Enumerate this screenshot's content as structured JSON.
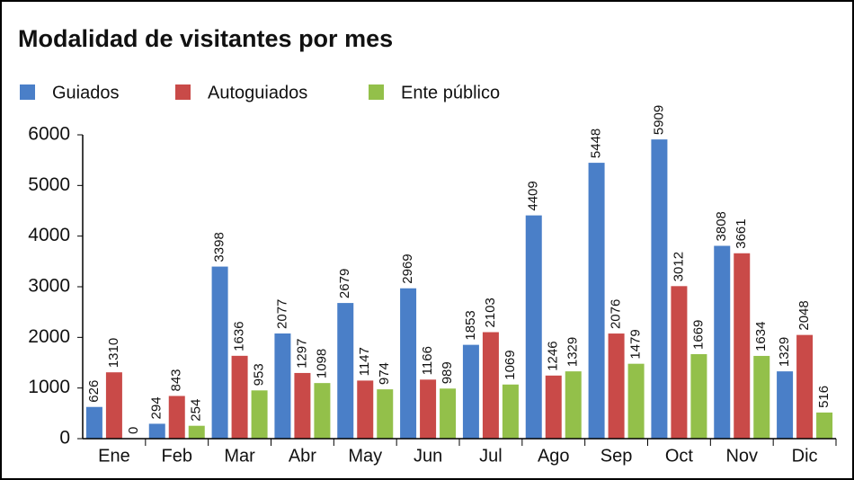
{
  "chart_data": {
    "type": "bar",
    "title": "Modalidad de visitantes por mes",
    "categories": [
      "Ene",
      "Feb",
      "Mar",
      "Abr",
      "May",
      "Jun",
      "Jul",
      "Ago",
      "Sep",
      "Oct",
      "Nov",
      "Dic"
    ],
    "series": [
      {
        "name": "Guiados",
        "color": "#4a7fc8",
        "values": [
          626,
          294,
          3398,
          2077,
          2679,
          2969,
          1853,
          4409,
          5448,
          5909,
          3808,
          1329
        ]
      },
      {
        "name": "Autoguiados",
        "color": "#c94a48",
        "values": [
          1310,
          843,
          1636,
          1297,
          1147,
          1166,
          2103,
          1246,
          2076,
          3012,
          3661,
          2048
        ]
      },
      {
        "name": "Ente público",
        "color": "#93c04a",
        "values": [
          0,
          254,
          953,
          1098,
          974,
          989,
          1069,
          1329,
          1479,
          1669,
          1634,
          516
        ]
      }
    ],
    "ylim": [
      0,
      6000
    ],
    "yticks": [
      0,
      1000,
      2000,
      3000,
      4000,
      5000,
      6000
    ],
    "grid": false
  }
}
